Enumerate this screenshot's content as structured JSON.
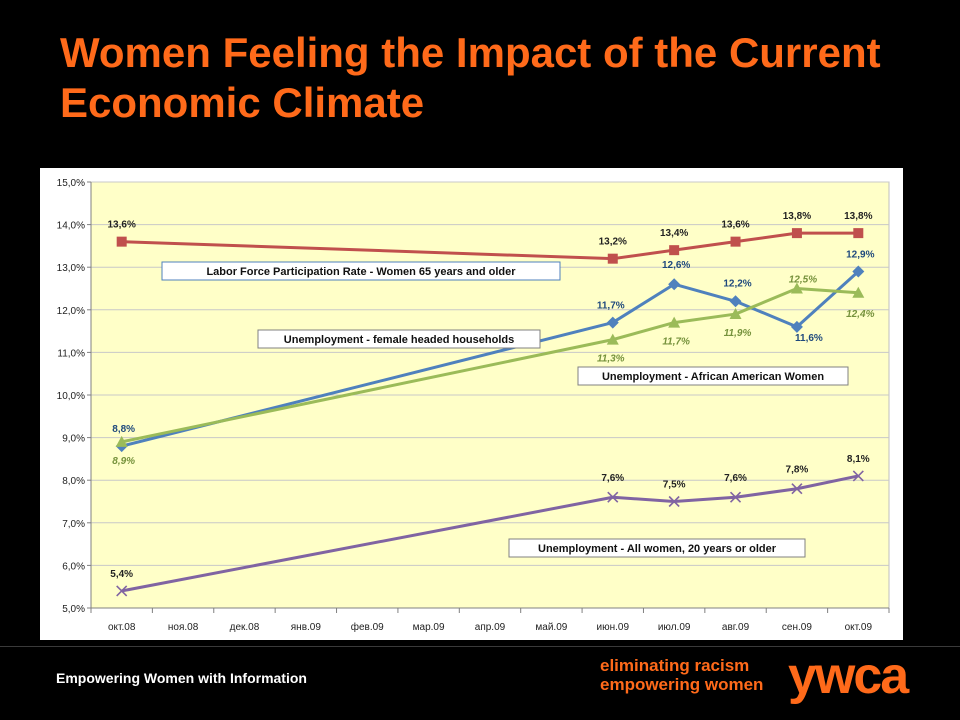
{
  "slide": {
    "title": "Women Feeling the Impact of the Current Economic Climate",
    "footer_text": "Empowering Women with Information",
    "brand_tagline_1": "eliminating racism",
    "brand_tagline_2": "empowering women",
    "brand_logo": "ywca",
    "title_color": "#ff6a1a"
  },
  "chart_data": {
    "type": "line",
    "categories": [
      "окт.08",
      "ноя.08",
      "дек.08",
      "янв.09",
      "фев.09",
      "мар.09",
      "апр.09",
      "май.09",
      "июн.09",
      "июл.09",
      "авг.09",
      "сен.09",
      "окт.09"
    ],
    "ylim": [
      5.0,
      15.0
    ],
    "ytick_step": 1.0,
    "ytick_labels": [
      "5,0%",
      "6,0%",
      "7,0%",
      "8,0%",
      "9,0%",
      "10,0%",
      "11,0%",
      "12,0%",
      "13,0%",
      "14,0%",
      "15,0%"
    ],
    "grid": true,
    "plot_background": "#ffffc8",
    "series": [
      {
        "name": "Labor Force Participation Rate - Women 65 years and older",
        "color": "#c0504d",
        "marker": "square",
        "points": [
          [
            0,
            13.6
          ],
          [
            8,
            13.2
          ],
          [
            9,
            13.4
          ],
          [
            10,
            13.6
          ],
          [
            11,
            13.8
          ],
          [
            12,
            13.8
          ]
        ],
        "labels": [
          "13,6%",
          "13,2%",
          "13,4%",
          "13,6%",
          "13,8%",
          "13,8%"
        ],
        "label_color": "#222222",
        "label_style": "normal"
      },
      {
        "name": "Unemployment - female headed households",
        "color": "#4f81bd",
        "marker": "diamond",
        "points": [
          [
            0,
            8.8
          ],
          [
            8,
            11.7
          ],
          [
            9,
            12.6
          ],
          [
            10,
            12.2
          ],
          [
            11,
            11.6
          ],
          [
            12,
            12.9
          ]
        ],
        "labels": [
          "8,8%",
          "11,7%",
          "12,6%",
          "12,2%",
          "11,6%",
          "12,9%"
        ],
        "label_color": "#1f497d",
        "label_style": "normal"
      },
      {
        "name": "Unemployment - African American Women",
        "color": "#9bbb59",
        "marker": "triangle",
        "points": [
          [
            0,
            8.9
          ],
          [
            8,
            11.3
          ],
          [
            9,
            11.7
          ],
          [
            10,
            11.9
          ],
          [
            11,
            12.5
          ],
          [
            12,
            12.4
          ]
        ],
        "labels": [
          "8,9%",
          "11,3%",
          "11,7%",
          "11,9%",
          "12,5%",
          "12,4%"
        ],
        "label_color": "#76923c",
        "label_style": "italic"
      },
      {
        "name": "Unemployment - All women, 20 years or older",
        "color": "#8064a2",
        "marker": "x",
        "points": [
          [
            0,
            5.4
          ],
          [
            8,
            7.6
          ],
          [
            9,
            7.5
          ],
          [
            10,
            7.6
          ],
          [
            11,
            7.8
          ],
          [
            12,
            8.1
          ]
        ],
        "labels": [
          "5,4%",
          "7,6%",
          "7,5%",
          "7,6%",
          "7,8%",
          "8,1%"
        ],
        "label_color": "#222222",
        "label_style": "normal"
      }
    ]
  }
}
